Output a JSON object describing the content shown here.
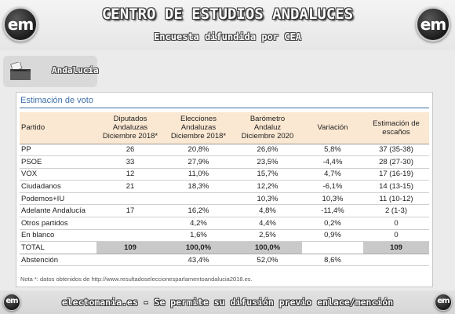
{
  "header": {
    "logo_text": "em",
    "title": "CENTRO DE ESTUDIOS ANDALUCES",
    "subtitle": "Encuesta difundida por CEA"
  },
  "region": {
    "label": "Andalucía",
    "icon": "ballot-box-icon"
  },
  "section": {
    "title": "Estimación de voto"
  },
  "table": {
    "headers": [
      [
        "Partido"
      ],
      [
        "Diputados",
        "Andaluzas",
        "Diciembre 2018*"
      ],
      [
        "Elecciones",
        "Andaluzas",
        "Diciembre 2018*"
      ],
      [
        "Barómetro",
        "Andaluz",
        "Diciembre 2020"
      ],
      [
        "Variación"
      ],
      [
        "Estimación de",
        "escaños"
      ]
    ],
    "rows": [
      [
        "PP",
        "26",
        "20,8%",
        "26,6%",
        "5,8%",
        "37 (35-38)"
      ],
      [
        "PSOE",
        "33",
        "27,9%",
        "23,5%",
        "-4,4%",
        "28 (27-30)"
      ],
      [
        "VOX",
        "12",
        "11,0%",
        "15,7%",
        "4,7%",
        "17 (16-19)"
      ],
      [
        "Ciudadanos",
        "21",
        "18,3%",
        "12,2%",
        "-6,1%",
        "14 (13-15)"
      ],
      [
        "Podemos+IU",
        "",
        "",
        "10,3%",
        "10,3%",
        "11 (10-12)"
      ],
      [
        "Adelante Andalucía",
        "17",
        "16,2%",
        "4,8%",
        "-11,4%",
        "2 (1-3)"
      ],
      [
        "Otros partidos",
        "",
        "4,2%",
        "4,4%",
        "0,2%",
        "0"
      ],
      [
        "En blanco",
        "",
        "1,6%",
        "2,5%",
        "0,9%",
        "0"
      ]
    ],
    "total": [
      "TOTAL",
      "109",
      "100,0%",
      "100,0%",
      "",
      "109"
    ],
    "abstention": [
      "Abstención",
      "",
      "43,4%",
      "52,0%",
      "8,6%",
      ""
    ]
  },
  "note": "Nota *: datos obtenidos de http://www.resultadoseleccionesparlamentoandalucia2018.es.",
  "footer": {
    "text": "electomania.es - Se permite su difusión previo enlace/mención"
  },
  "colors": {
    "header_row": "#fbe8d2",
    "total_row": "#c9c9c9",
    "accent": "#3d6fa8"
  }
}
